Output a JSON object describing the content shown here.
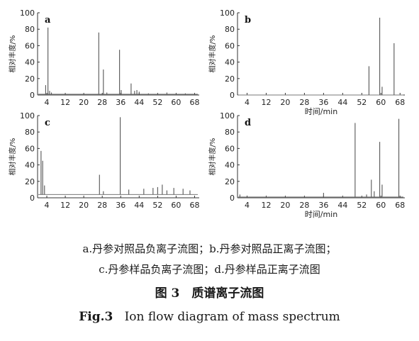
{
  "chart_data": [
    {
      "type": "line",
      "panel": "a",
      "ylabel": "相对丰度/%",
      "xlabel": "",
      "xticks": [
        4,
        12,
        20,
        28,
        36,
        44,
        52,
        60,
        68
      ],
      "yticks": [
        0,
        20,
        40,
        60,
        80,
        100
      ],
      "xlim": [
        0,
        70
      ],
      "ylim": [
        0,
        100
      ],
      "baseline": 1,
      "peaks": [
        [
          3.5,
          12
        ],
        [
          4.5,
          82
        ],
        [
          5.2,
          5
        ],
        [
          6,
          3
        ],
        [
          26.5,
          76
        ],
        [
          28.5,
          31
        ],
        [
          30,
          3
        ],
        [
          35.5,
          55
        ],
        [
          36.2,
          6
        ],
        [
          40.5,
          14
        ],
        [
          42,
          5
        ],
        [
          43,
          6
        ],
        [
          44,
          4
        ],
        [
          48,
          2
        ],
        [
          56,
          3
        ],
        [
          64,
          2
        ]
      ]
    },
    {
      "type": "line",
      "panel": "b",
      "ylabel": "相对丰度/%",
      "xlabel": "时间/min",
      "xticks": [
        4,
        12,
        20,
        28,
        36,
        44,
        52,
        60,
        68
      ],
      "yticks": [
        0,
        20,
        40,
        60,
        80,
        100
      ],
      "xlim": [
        0,
        70
      ],
      "ylim": [
        0,
        100
      ],
      "baseline": 0,
      "peaks": [
        [
          55,
          35
        ],
        [
          59.5,
          94
        ],
        [
          60.5,
          10
        ],
        [
          65.5,
          63
        ]
      ]
    },
    {
      "type": "line",
      "panel": "c",
      "ylabel": "相对丰度/%",
      "xlabel": "",
      "xticks": [
        4,
        12,
        20,
        28,
        36,
        44,
        52,
        60,
        68
      ],
      "yticks": [
        0,
        20,
        40,
        60,
        80,
        100
      ],
      "xlim": [
        0,
        70
      ],
      "ylim": [
        0,
        100
      ],
      "baseline": 4,
      "peaks": [
        [
          1.5,
          57
        ],
        [
          2.2,
          45
        ],
        [
          3,
          15
        ],
        [
          26.8,
          28
        ],
        [
          28.5,
          8
        ],
        [
          35.8,
          98
        ],
        [
          39.5,
          10
        ],
        [
          46,
          11
        ],
        [
          50,
          12
        ],
        [
          52,
          13
        ],
        [
          54,
          16
        ],
        [
          56,
          9
        ],
        [
          59,
          12
        ],
        [
          63,
          11
        ],
        [
          66,
          9
        ]
      ]
    },
    {
      "type": "line",
      "panel": "d",
      "ylabel": "相对丰度/%",
      "xlabel": "时间/min",
      "xticks": [
        4,
        12,
        20,
        28,
        36,
        44,
        52,
        60,
        68
      ],
      "yticks": [
        0,
        20,
        40,
        60,
        80,
        100
      ],
      "xlim": [
        0,
        70
      ],
      "ylim": [
        0,
        100
      ],
      "baseline": 1,
      "peaks": [
        [
          1,
          4
        ],
        [
          36,
          6
        ],
        [
          49.2,
          91
        ],
        [
          54,
          4
        ],
        [
          56,
          22
        ],
        [
          57.2,
          8
        ],
        [
          59.5,
          68
        ],
        [
          60.5,
          16
        ],
        [
          67.5,
          96
        ]
      ]
    }
  ],
  "caption": {
    "line1": "a.丹参对照品负离子流图；b.丹参对照品正离子流图；",
    "line2": "c.丹参样品负离子流图；d.丹参样品正离子流图",
    "title_cn": "图 3　质谱离子流图",
    "fig_en_label": "Fig.3",
    "title_en": "Ion flow diagram of mass spectrum"
  }
}
